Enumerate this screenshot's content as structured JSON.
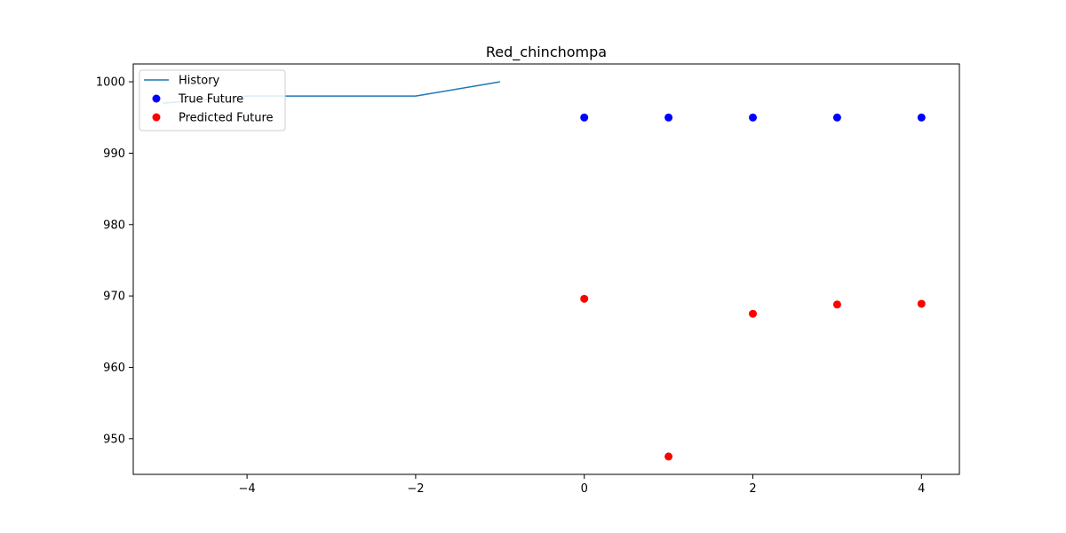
{
  "chart_data": {
    "type": "scatter",
    "title": "Red_chinchompa",
    "xlabel": "",
    "ylabel": "",
    "xlim": [
      -5.35,
      4.45
    ],
    "ylim": [
      945.0,
      1002.5
    ],
    "xticks": [
      -4,
      -2,
      0,
      2,
      4
    ],
    "xtick_labels": [
      "−4",
      "−2",
      "0",
      "2",
      "4"
    ],
    "yticks": [
      950,
      960,
      970,
      980,
      990,
      1000
    ],
    "ytick_labels": [
      "950",
      "960",
      "970",
      "980",
      "990",
      "1000"
    ],
    "grid": false,
    "legend_position": "top-left",
    "series": [
      {
        "name": "History",
        "kind": "line",
        "color": "#1f77b4",
        "x": [
          -5,
          -4,
          -3,
          -2,
          -1
        ],
        "y": [
          997,
          998,
          998,
          998,
          1000
        ]
      },
      {
        "name": "True Future",
        "kind": "scatter",
        "color": "#0000ff",
        "x": [
          0,
          1,
          2,
          3,
          4
        ],
        "y": [
          995,
          995,
          995,
          995,
          995
        ]
      },
      {
        "name": "Predicted Future",
        "kind": "scatter",
        "color": "#ff0000",
        "x": [
          0,
          1,
          2,
          3,
          4
        ],
        "y": [
          969.6,
          947.5,
          967.5,
          968.8,
          968.9
        ]
      }
    ]
  }
}
